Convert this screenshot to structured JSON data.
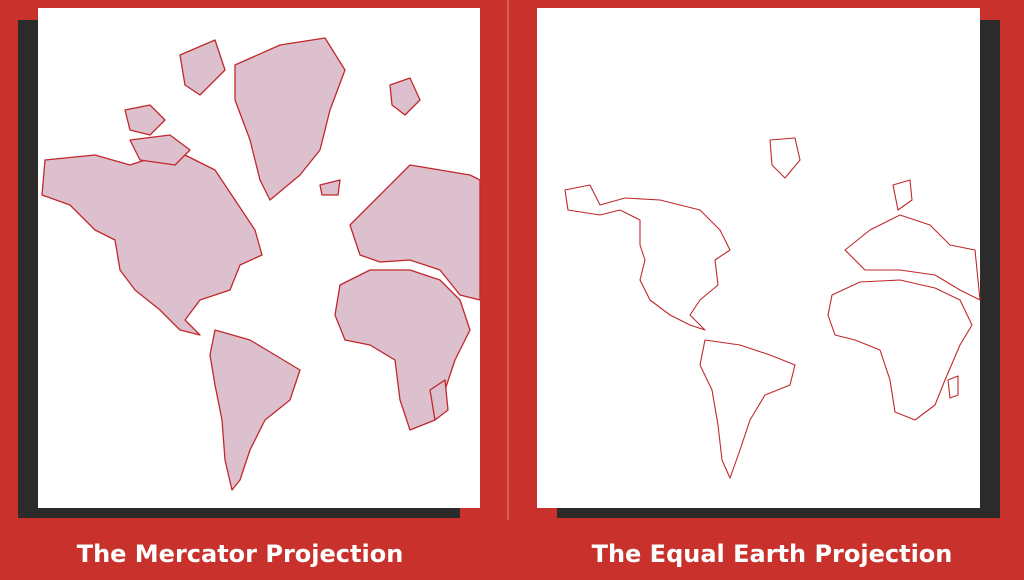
{
  "captions": {
    "left": "The Mercator Projection",
    "right": "The Equal Earth Projection"
  }
}
